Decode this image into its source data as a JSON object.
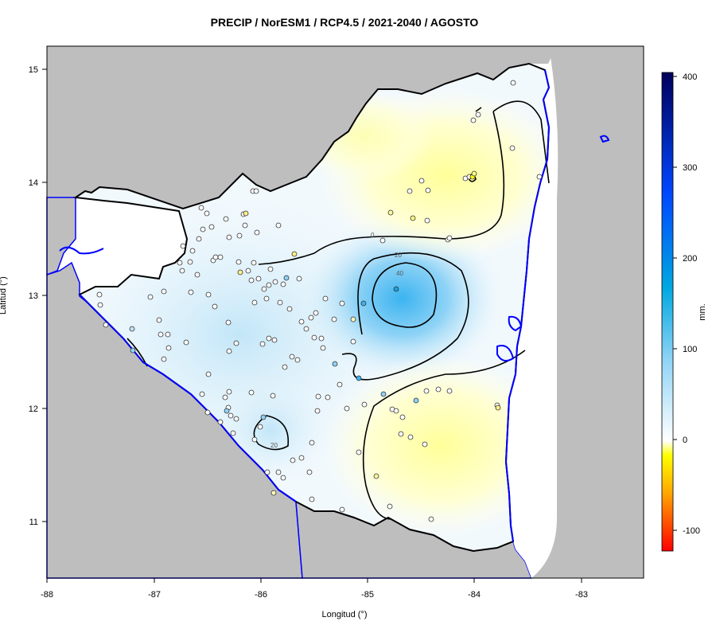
{
  "title": "PRECIP / NorESM1 / RCP4.5 / 2021-2040 / AGOSTO",
  "x_axis": {
    "label": "Longitud (°)",
    "ticks": [
      "-88",
      "-87",
      "-86",
      "-85",
      "-84",
      "-83"
    ]
  },
  "y_axis": {
    "label": "Latitud (°)",
    "ticks": [
      "15",
      "14",
      "13",
      "12",
      "11"
    ]
  },
  "colorbar": {
    "label": "mm.",
    "ticks": [
      "400",
      "300",
      "200",
      "100",
      "0",
      "-100"
    ],
    "min": -120,
    "max": 400
  },
  "contour_labels": [
    "0",
    "20",
    "40",
    "20"
  ],
  "colors": {
    "land_outside": "#bebebe",
    "coastline": "#0000ff",
    "border": "#000000"
  },
  "chart_data": {
    "type": "heatmap",
    "variable": "PRECIP",
    "xlabel": "Longitud (°)",
    "ylabel": "Latitud (°)",
    "xlim": [
      -88,
      -82.4
    ],
    "ylim": [
      10.5,
      15.2
    ],
    "colorbar_range": [
      -120,
      400
    ],
    "contour_levels": [
      0,
      20,
      40
    ],
    "features": [
      {
        "name": "positive anomaly core",
        "lon": -84.7,
        "lat": 12.95,
        "value": 45
      },
      {
        "name": "positive anomaly north-west",
        "lon": -86.4,
        "lat": 12.9,
        "value": 15
      },
      {
        "name": "positive anomaly south-west",
        "lon": -85.95,
        "lat": 11.8,
        "value": 22
      },
      {
        "name": "negative anomaly north",
        "lon": -84.1,
        "lat": 14.05,
        "value": -10
      },
      {
        "name": "negative anomaly south",
        "lon": -84.2,
        "lat": 11.75,
        "value": -12
      }
    ]
  }
}
